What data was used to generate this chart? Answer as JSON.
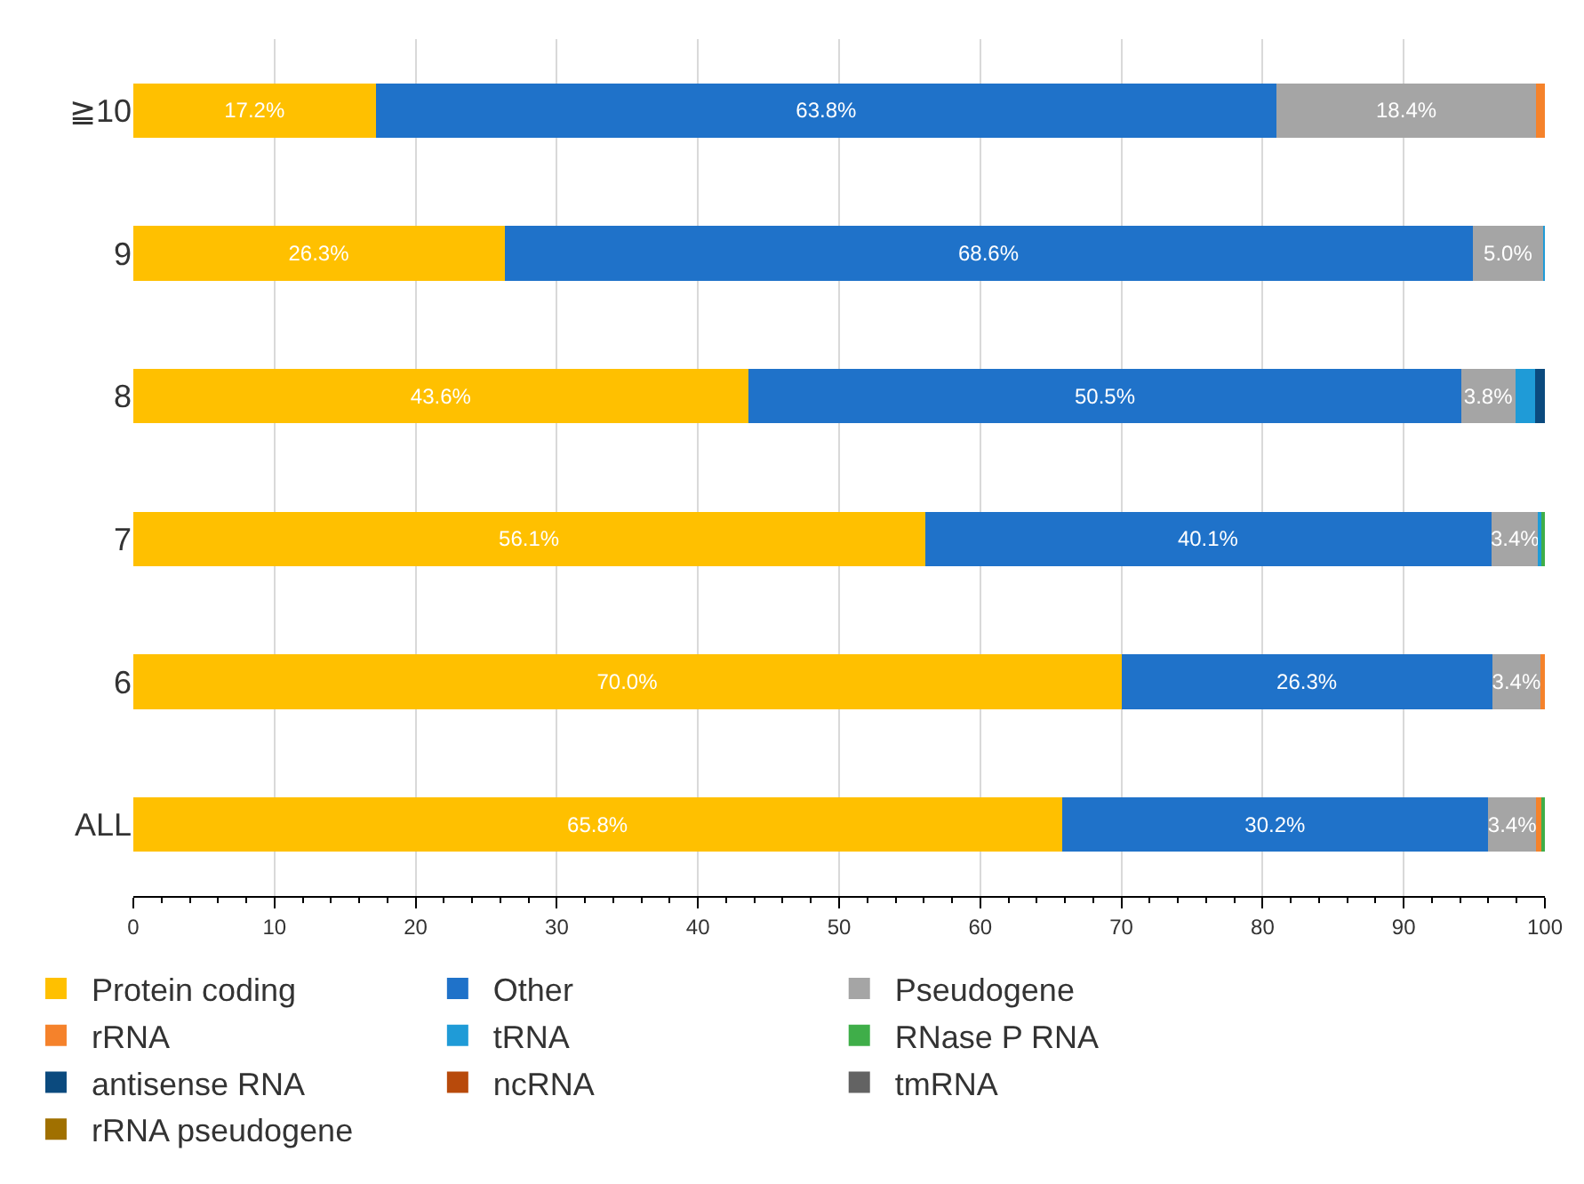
{
  "chart_data": {
    "type": "bar",
    "orientation": "horizontal",
    "stacked": true,
    "categories": [
      "≧10",
      "9",
      "8",
      "7",
      "6",
      "ALL"
    ],
    "series": [
      {
        "name": "Protein coding",
        "color": "#ffc000",
        "values": [
          17.2,
          26.3,
          43.6,
          56.1,
          70.0,
          65.8
        ],
        "value_labels": [
          "17.2%",
          "26.3%",
          "43.6%",
          "56.1%",
          "70.0%",
          "65.8%"
        ]
      },
      {
        "name": "Other",
        "color": "#1f72c9",
        "values": [
          63.8,
          68.6,
          50.5,
          40.1,
          26.3,
          30.2
        ],
        "value_labels": [
          "63.8%",
          "68.6%",
          "50.5%",
          "40.1%",
          "26.3%",
          "30.2%"
        ]
      },
      {
        "name": "Pseudogene",
        "color": "#a5a5a5",
        "values": [
          18.4,
          5.0,
          3.8,
          3.4,
          3.4,
          3.4
        ],
        "value_labels": [
          "18.4%",
          "5.0%",
          "3.8%",
          "3.4%",
          "3.4%",
          "3.4%"
        ]
      },
      {
        "name": "rRNA",
        "color": "#f5822b",
        "values": [
          0.6,
          null,
          null,
          null,
          0.3,
          0.4
        ]
      },
      {
        "name": "tRNA",
        "color": "#1f9bd7",
        "values": [
          null,
          0.1,
          1.4,
          0.2,
          null,
          null
        ]
      },
      {
        "name": "RNase P RNA",
        "color": "#3fae49",
        "values": [
          null,
          null,
          null,
          0.2,
          null,
          0.2
        ]
      },
      {
        "name": "antisense RNA",
        "color": "#0b4a7e",
        "values": [
          null,
          null,
          0.7,
          null,
          null,
          null
        ]
      },
      {
        "name": "ncRNA",
        "color": "#b84a0b",
        "values": [
          null,
          null,
          null,
          null,
          null,
          null
        ]
      },
      {
        "name": "tmRNA",
        "color": "#636363",
        "values": [
          null,
          null,
          null,
          null,
          null,
          null
        ]
      },
      {
        "name": "rRNA pseudogene",
        "color": "#a07000",
        "values": [
          null,
          null,
          null,
          null,
          null,
          null
        ]
      }
    ],
    "xlim": [
      0,
      100
    ],
    "xticks": [
      0,
      10,
      20,
      30,
      40,
      50,
      60,
      70,
      80,
      90,
      100
    ],
    "grid": "x",
    "legend": "bottom"
  }
}
